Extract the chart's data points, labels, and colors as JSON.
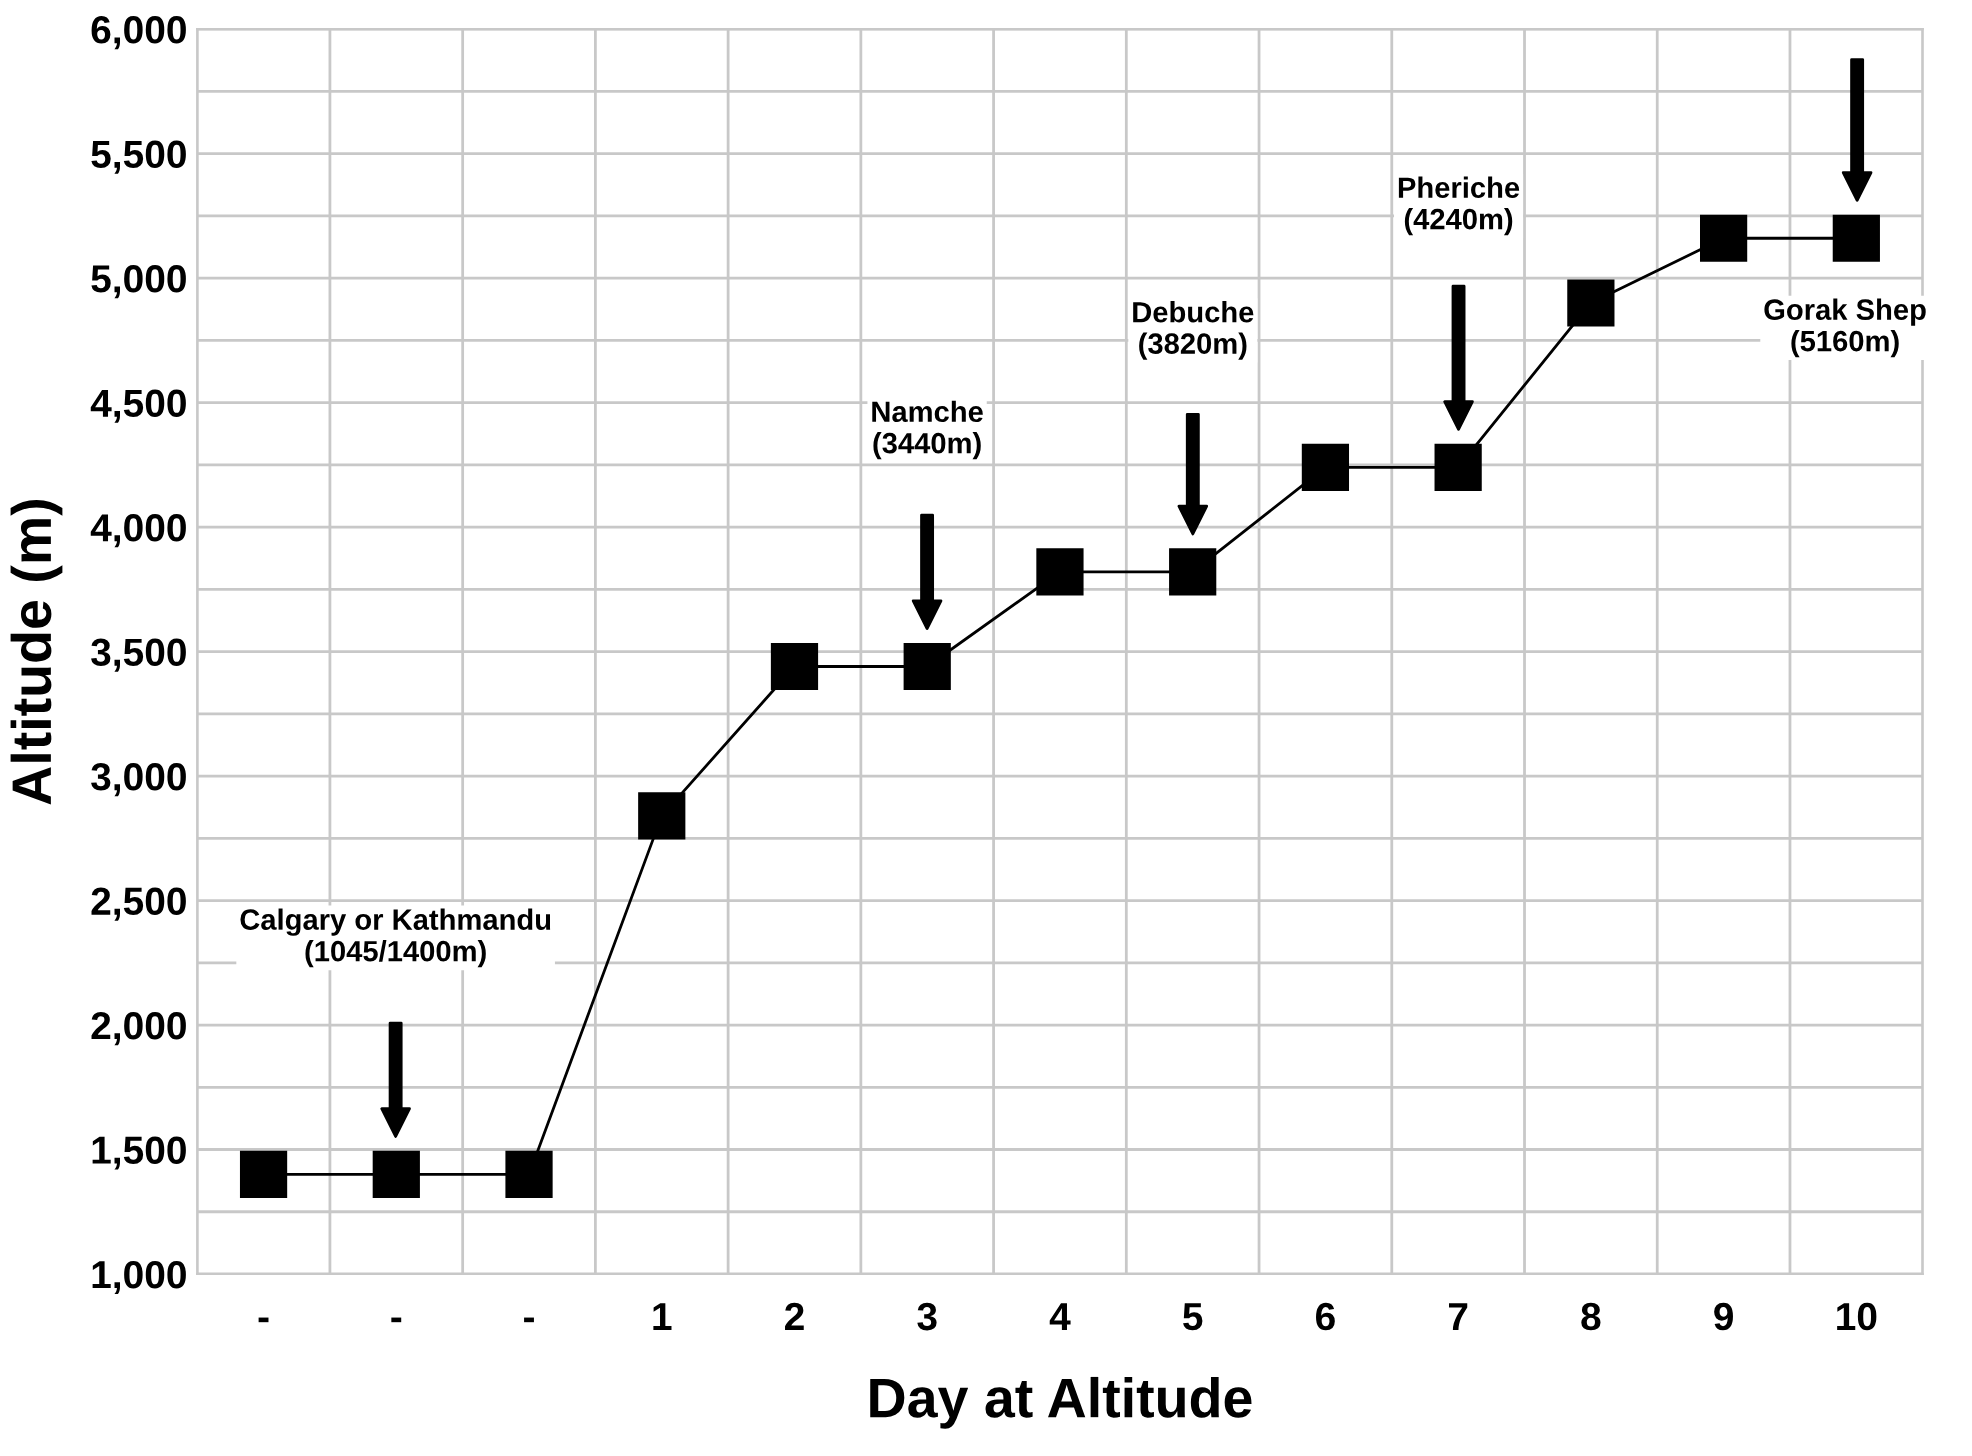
{
  "chart_data": {
    "type": "line",
    "xlabel": "Day at Altitude",
    "ylabel": "Altitude (m)",
    "categories": [
      "-",
      "-",
      "-",
      "1",
      "2",
      "3",
      "4",
      "5",
      "6",
      "7",
      "8",
      "9",
      "10"
    ],
    "series": [
      {
        "color": "#000000",
        "values": [
          1400,
          1400,
          1400,
          2840,
          3440,
          3440,
          3820,
          3820,
          4240,
          4240,
          4900,
          5160,
          5160
        ]
      }
    ],
    "marker": "square",
    "line_style": "solid",
    "grid": true,
    "legend": false,
    "ylim": [
      1000,
      6000
    ],
    "yticks": [
      {
        "value": 1000,
        "label": "1,000"
      },
      {
        "value": 1250,
        "label": null
      },
      {
        "value": 1500,
        "label": "1,500"
      },
      {
        "value": 1750,
        "label": null
      },
      {
        "value": 2000,
        "label": "2,000"
      },
      {
        "value": 2250,
        "label": null
      },
      {
        "value": 2500,
        "label": "2,500"
      },
      {
        "value": 2750,
        "label": null
      },
      {
        "value": 3000,
        "label": "3,000"
      },
      {
        "value": 3250,
        "label": null
      },
      {
        "value": 3500,
        "label": "3,500"
      },
      {
        "value": 3750,
        "label": null
      },
      {
        "value": 4000,
        "label": "4,000"
      },
      {
        "value": 4250,
        "label": null
      },
      {
        "value": 4500,
        "label": "4,500"
      },
      {
        "value": 4750,
        "label": null
      },
      {
        "value": 5000,
        "label": "5,000"
      },
      {
        "value": 5250,
        "label": null
      },
      {
        "value": 5500,
        "label": "5,500"
      },
      {
        "value": 5750,
        "label": null
      },
      {
        "value": 6000,
        "label": "6,000"
      }
    ],
    "annotations": [
      "Calgary or Kathmandu\n(1045/1400m)",
      "Namche\n(3440m)",
      "Debuche\n(3820m)",
      "Pheriche\n(4240m)",
      "Gorak Shep\n(5160m)"
    ]
  }
}
